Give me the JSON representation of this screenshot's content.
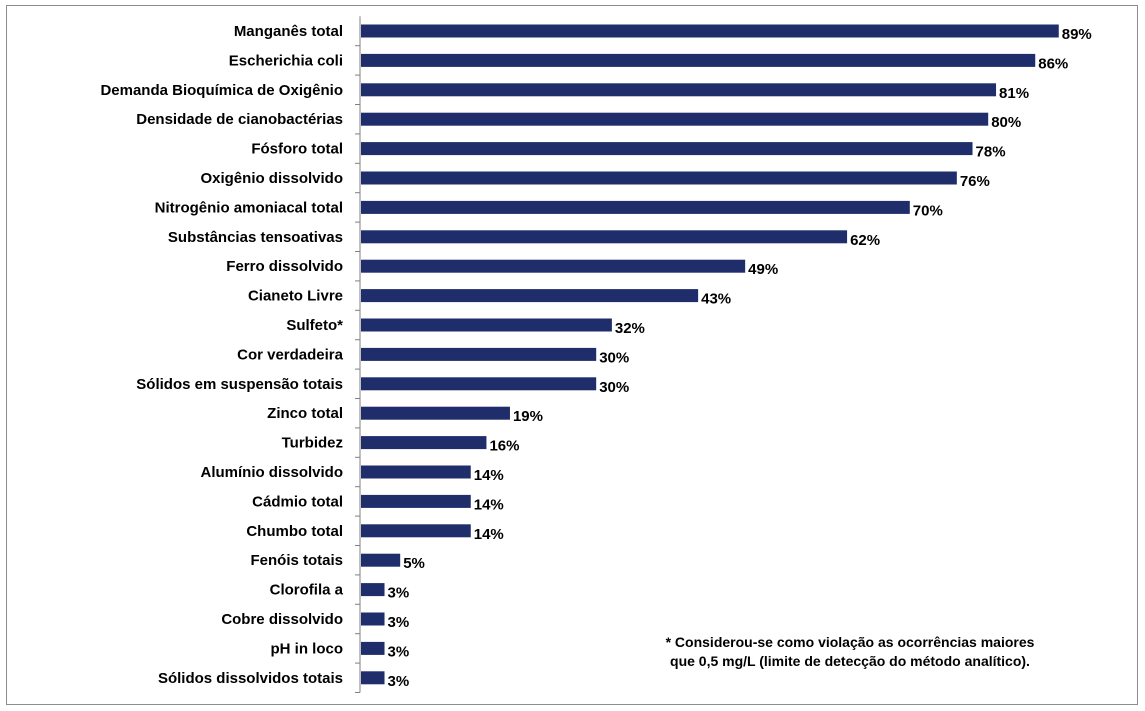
{
  "chart_data": {
    "type": "bar",
    "orientation": "horizontal",
    "categories": [
      "Manganês total",
      "Escherichia coli",
      "Demanda Bioquímica de Oxigênio",
      "Densidade de cianobactérias",
      "Fósforo total",
      "Oxigênio dissolvido",
      "Nitrogênio amoniacal total",
      "Substâncias tensoativas",
      "Ferro dissolvido",
      "Cianeto Livre",
      "Sulfeto*",
      "Cor verdadeira",
      "Sólidos em suspensão totais",
      "Zinco total",
      "Turbidez",
      "Alumínio dissolvido",
      "Cádmio total",
      "Chumbo total",
      "Fenóis totais",
      "Clorofila a",
      "Cobre dissolvido",
      "pH in loco",
      "Sólidos dissolvidos totais"
    ],
    "values": [
      89,
      86,
      81,
      80,
      78,
      76,
      70,
      62,
      49,
      43,
      32,
      30,
      30,
      19,
      16,
      14,
      14,
      14,
      5,
      3,
      3,
      3,
      3
    ],
    "value_labels": [
      "89%",
      "86%",
      "81%",
      "80%",
      "78%",
      "76%",
      "70%",
      "62%",
      "49%",
      "43%",
      "32%",
      "30%",
      "30%",
      "19%",
      "16%",
      "14%",
      "14%",
      "14%",
      "5%",
      "3%",
      "3%",
      "3%",
      "3%"
    ],
    "xlim": [
      0,
      100
    ],
    "grid": false,
    "legend": "none",
    "bar_color": "#1f2d6b",
    "footnote": [
      "* Considerou-se como violação as ocorrências maiores",
      "que 0,5 mg/L (limite de detecção do método analítico)."
    ]
  }
}
